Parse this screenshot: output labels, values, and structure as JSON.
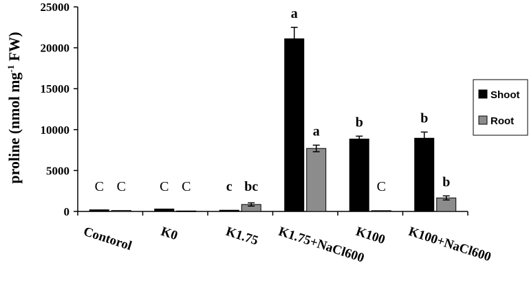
{
  "chart_data": {
    "type": "bar",
    "categories": [
      "Contorol",
      "K0",
      "K1.75",
      "K1.75+NaCl600",
      "K100",
      "K100+NaCl600"
    ],
    "series": [
      {
        "name": "Shoot",
        "color": "#000000",
        "values": [
          200,
          300,
          150,
          21100,
          8850,
          8950
        ],
        "errors": [
          0,
          0,
          0,
          1400,
          350,
          750
        ],
        "labels": [
          "C",
          "C",
          "c",
          "a",
          "b",
          "b"
        ]
      },
      {
        "name": "Root",
        "color": "#8c8c8c",
        "values": [
          120,
          60,
          850,
          7700,
          100,
          1650
        ],
        "errors": [
          0,
          0,
          200,
          400,
          0,
          250
        ],
        "labels": [
          "C",
          "C",
          "bc",
          "a",
          "C",
          "b"
        ]
      }
    ],
    "ylabel": "proline (nmol mg-1 FW)",
    "ylim": [
      0,
      25000
    ],
    "yticks": [
      "0",
      "5000",
      "10000",
      "15000",
      "20000",
      "25000"
    ],
    "legend": "right",
    "grid": false
  }
}
